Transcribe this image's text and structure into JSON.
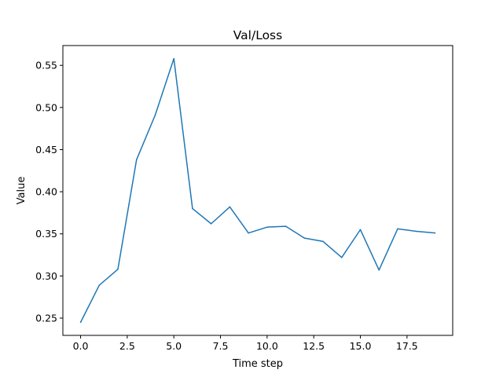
{
  "chart_data": {
    "type": "line",
    "title": "Val/Loss",
    "xlabel": "Time step",
    "ylabel": "Value",
    "xlim": [
      -0.95,
      19.95
    ],
    "ylim": [
      0.2295,
      0.5735
    ],
    "xticks": [
      0.0,
      2.5,
      5.0,
      7.5,
      10.0,
      12.5,
      15.0,
      17.5
    ],
    "xtick_labels": [
      "0.0",
      "2.5",
      "5.0",
      "7.5",
      "10.0",
      "12.5",
      "15.0",
      "17.5"
    ],
    "yticks": [
      0.25,
      0.3,
      0.35,
      0.4,
      0.45,
      0.5,
      0.55
    ],
    "ytick_labels": [
      "0.25",
      "0.30",
      "0.35",
      "0.40",
      "0.45",
      "0.50",
      "0.55"
    ],
    "grid": false,
    "series": [
      {
        "color": "#1f77b4",
        "x": [
          0,
          1,
          2,
          3,
          4,
          5,
          6,
          7,
          8,
          9,
          10,
          11,
          12,
          13,
          14,
          15,
          16,
          17,
          18,
          19
        ],
        "y": [
          0.245,
          0.289,
          0.308,
          0.438,
          0.491,
          0.558,
          0.38,
          0.362,
          0.382,
          0.351,
          0.358,
          0.359,
          0.345,
          0.341,
          0.322,
          0.355,
          0.307,
          0.356,
          0.353,
          0.351
        ]
      }
    ]
  }
}
